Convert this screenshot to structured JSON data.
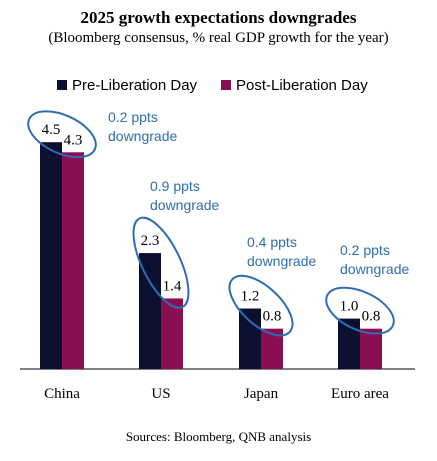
{
  "chart_data": {
    "type": "bar",
    "title": "2025 growth expectations downgrades",
    "subtitle": "(Bloomberg consensus, % real GDP growth for the year)",
    "categories": [
      "China",
      "US",
      "Japan",
      "Euro area"
    ],
    "series": [
      {
        "name": "Pre-Liberation Day",
        "values": [
          4.5,
          2.3,
          1.2,
          1.0
        ]
      },
      {
        "name": "Post-Liberation Day",
        "values": [
          4.3,
          1.4,
          0.8,
          0.8
        ]
      }
    ],
    "value_labels": [
      [
        "4.5",
        "4.3"
      ],
      [
        "2.3",
        "1.4"
      ],
      [
        "1.2",
        "0.8"
      ],
      [
        "1.0",
        "0.8"
      ]
    ],
    "annotations": [
      {
        "line1": "0.2 ppts",
        "line2": "downgrade"
      },
      {
        "line1": "0.9 ppts",
        "line2": "downgrade"
      },
      {
        "line1": "0.4 ppts",
        "line2": "downgrade"
      },
      {
        "line1": "0.2 ppts",
        "line2": "downgrade"
      }
    ],
    "ylim": [
      0,
      5
    ],
    "legend_position": "top",
    "grid": false,
    "source": "Sources: Bloomberg, QNB analysis"
  },
  "colors": {
    "pre": "#0b1030",
    "post": "#8a0f52",
    "annotation": "#2e6db4",
    "ellipse": "#2e6db4",
    "axis": "#000000"
  }
}
